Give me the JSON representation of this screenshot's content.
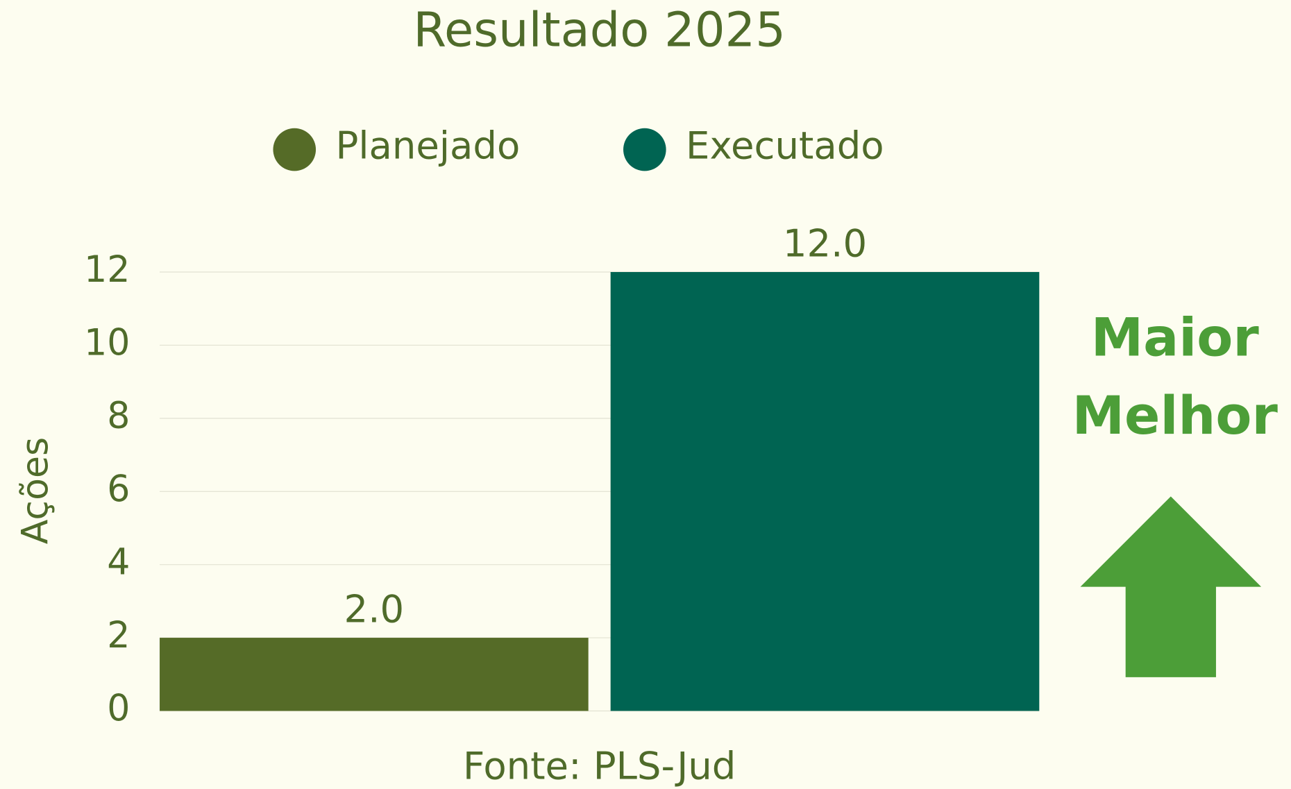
{
  "chart_data": {
    "type": "bar",
    "title": "Resultado 2025",
    "categories": [
      null
    ],
    "series": [
      {
        "name": "Planejado",
        "color": "#556b27",
        "values": [
          2
        ],
        "value_labels": [
          "2.0"
        ]
      },
      {
        "name": "Executado",
        "color": "#006452",
        "values": [
          12
        ],
        "value_labels": [
          "12.0"
        ]
      }
    ],
    "ylabel": "Ações",
    "ylim": [
      0,
      12
    ],
    "yticks": [
      0,
      2,
      4,
      6,
      8,
      10,
      12
    ],
    "grid": true,
    "legend": "top",
    "annotation": [
      "Maior",
      "Melhor"
    ],
    "source": "Fonte: PLS-Jud"
  }
}
